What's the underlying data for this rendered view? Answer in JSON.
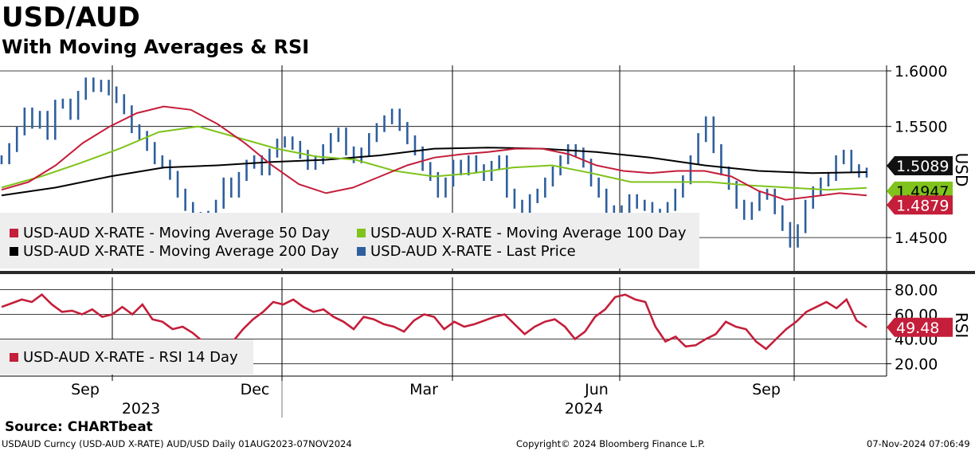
{
  "header": {
    "title": "USD/AUD",
    "subtitle": "With Moving Averages & RSI"
  },
  "footer": {
    "source": "Source: CHARTbeat",
    "ticker_info": "USDAUD Curncy (USD-AUD X-RATE) AUD/USD  Daily 01AUG2023-07NOV2024",
    "copyright": "Copyright© 2024 Bloomberg Finance L.P.",
    "timestamp": "07-Nov-2024 07:06:49"
  },
  "colors": {
    "ma50": "#c41e3a",
    "ma100": "#7fc31c",
    "ma200": "#000000",
    "last_price": "#2e5f9e",
    "rsi": "#c41e3a",
    "legend_bg": "#eeeeee"
  },
  "chart_data": [
    {
      "type": "line",
      "name": "price-panel",
      "axis_label": "USD",
      "ylim": [
        1.42,
        1.605
      ],
      "yticks": [
        "1.6000",
        "1.5500",
        "1.4500"
      ],
      "ytick_values": [
        1.6,
        1.55,
        1.45
      ],
      "month_labels": [
        "Sep",
        "Dec",
        "Mar",
        "Jun",
        "Sep"
      ],
      "year_labels": [
        "2023",
        "2024"
      ],
      "legend": [
        "USD-AUD X-RATE - Moving Average 50 Day",
        "USD-AUD X-RATE - Moving Average 100 Day",
        "USD-AUD X-RATE - Moving Average 200 Day",
        "USD-AUD X-RATE - Last Price"
      ],
      "end_labels": {
        "last_price": "1.5089",
        "ma100": "1.4947",
        "ma50": "1.4879"
      },
      "series": [
        {
          "name": "Last Price",
          "color_key": "last_price",
          "values": [
            1.52,
            1.531,
            1.546,
            1.563,
            1.552,
            1.56,
            1.542,
            1.57,
            1.571,
            1.56,
            1.578,
            1.59,
            1.585,
            1.588,
            1.582,
            1.575,
            1.565,
            1.548,
            1.542,
            1.532,
            1.52,
            1.516,
            1.506,
            1.49,
            1.478,
            1.469,
            1.462,
            1.47,
            1.48,
            1.5,
            1.49,
            1.505,
            1.516,
            1.52,
            1.51,
            1.526,
            1.535,
            1.537,
            1.533,
            1.525,
            1.515,
            1.52,
            1.53,
            1.54,
            1.545,
            1.528,
            1.521,
            1.527,
            1.54,
            1.549,
            1.556,
            1.562,
            1.55,
            1.538,
            1.528,
            1.514,
            1.505,
            1.49,
            1.5,
            1.516,
            1.51,
            1.52,
            1.512,
            1.505,
            1.515,
            1.52,
            1.49,
            1.48,
            1.47,
            1.485,
            1.49,
            1.5,
            1.51,
            1.52,
            1.53,
            1.527,
            1.517,
            1.5,
            1.49,
            1.475,
            1.47,
            1.475,
            1.485,
            1.48,
            1.478,
            1.472,
            1.47,
            1.478,
            1.49,
            1.502,
            1.52,
            1.54,
            1.555,
            1.53,
            1.51,
            1.497,
            1.48,
            1.47,
            1.478,
            1.488,
            1.49,
            1.475,
            1.46,
            1.445,
            1.458,
            1.48,
            1.492,
            1.5,
            1.505,
            1.52,
            1.525,
            1.512,
            1.508,
            1.5089
          ]
        },
        {
          "name": "MA 50 Day",
          "color_key": "ma50",
          "values": [
            1.493,
            1.5,
            1.515,
            1.535,
            1.55,
            1.562,
            1.568,
            1.565,
            1.552,
            1.535,
            1.515,
            1.498,
            1.49,
            1.495,
            1.505,
            1.515,
            1.522,
            1.525,
            1.527,
            1.53,
            1.53,
            1.525,
            1.515,
            1.51,
            1.508,
            1.51,
            1.51,
            1.505,
            1.492,
            1.484,
            1.487,
            1.49,
            1.4879
          ]
        },
        {
          "name": "MA 100 Day",
          "color_key": "ma100",
          "values": [
            1.495,
            1.505,
            1.517,
            1.53,
            1.545,
            1.55,
            1.54,
            1.53,
            1.523,
            1.52,
            1.51,
            1.505,
            1.508,
            1.513,
            1.515,
            1.508,
            1.5,
            1.5,
            1.5,
            1.497,
            1.495,
            1.493,
            1.4947
          ]
        },
        {
          "name": "MA 200 Day",
          "color_key": "ma200",
          "values": [
            1.488,
            1.495,
            1.505,
            1.513,
            1.515,
            1.518,
            1.52,
            1.524,
            1.53,
            1.531,
            1.53,
            1.527,
            1.522,
            1.515,
            1.51,
            1.508,
            1.5089
          ]
        }
      ]
    },
    {
      "type": "line",
      "name": "rsi-panel",
      "axis_label": "RSI",
      "ylim": [
        10,
        90
      ],
      "yticks": [
        "80.00",
        "60.00",
        "40.00",
        "20.00"
      ],
      "ytick_values": [
        80,
        60,
        40,
        20
      ],
      "legend": [
        "USD-AUD X-RATE - RSI 14 Day"
      ],
      "end_label": "49.48",
      "series": [
        {
          "name": "RSI 14 Day",
          "color_key": "rsi",
          "values": [
            66,
            69,
            72,
            70,
            76,
            68,
            62,
            63,
            60,
            64,
            58,
            60,
            66,
            60,
            68,
            56,
            54,
            48,
            50,
            45,
            38,
            33,
            30,
            38,
            48,
            56,
            62,
            70,
            68,
            72,
            66,
            62,
            64,
            58,
            54,
            48,
            58,
            56,
            52,
            50,
            46,
            55,
            60,
            58,
            48,
            54,
            50,
            52,
            55,
            58,
            60,
            52,
            44,
            50,
            54,
            56,
            50,
            40,
            46,
            58,
            64,
            74,
            76,
            72,
            70,
            50,
            38,
            42,
            34,
            35,
            40,
            44,
            54,
            50,
            48,
            38,
            32,
            40,
            48,
            54,
            62,
            66,
            70,
            65,
            72,
            55,
            49.48
          ]
        }
      ]
    }
  ]
}
